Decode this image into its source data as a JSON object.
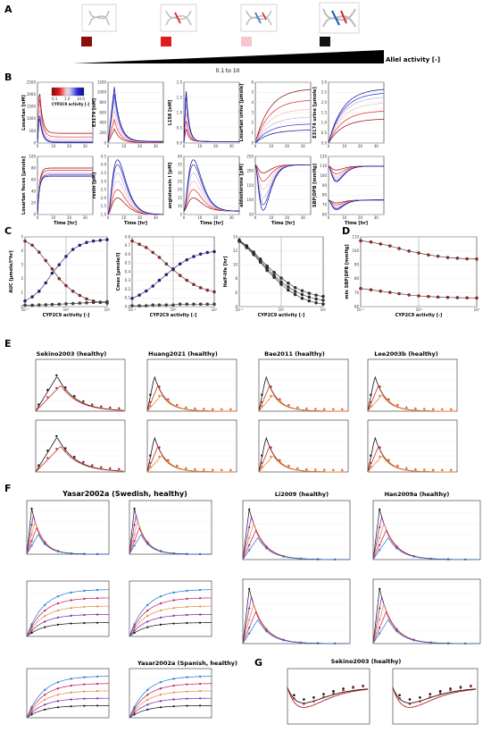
{
  "panel_letters": [
    "A",
    "B",
    "C",
    "D",
    "E",
    "F",
    "G"
  ],
  "panelA": {
    "range_label": "0.1 to 10",
    "allele_label": "Allel activity [-]",
    "swatch_colors": [
      "#8b0d0d",
      "#e01b1b",
      "#f4c7cb",
      "#111111"
    ]
  },
  "panelB": {
    "colorbar_label": "CYP2C9 activity [-]",
    "colorbar_ticks": [
      "0.1",
      "1.0",
      "10.0"
    ],
    "cmap": [
      "#8b0000",
      "#e8222a",
      "#f2b8b8",
      "#b9b9e6",
      "#2a2ad6",
      "#0b0b8f"
    ]
  },
  "panelC_D": {
    "markers": {
      "decreasing": "#b22222",
      "increasing": "#1a1aa8",
      "dark": "#444444"
    }
  },
  "panelE": {
    "titles": [
      "Sekino2003 (healthy)",
      "Huang2021 (healthy)",
      "Bae2011 (healthy)",
      "Lee2003b (healthy)"
    ]
  },
  "panelF": {
    "main_title": "Yasar2002a (Swedish, healthy)",
    "titles": [
      "Li2009 (healthy)",
      "Han2009a (healthy)"
    ],
    "sub_title": "Yasar2002a (Spanish, healthy)"
  },
  "panelG": {
    "title": "Sekino2003 (healthy)",
    "series_colors": [
      "#111111",
      "#b22222"
    ]
  },
  "chart_data": [
    {
      "id": "B1",
      "type": "line",
      "ylabel": "Losartan [nM]",
      "xlabel": "",
      "xlim": [
        0,
        35
      ],
      "ylim": [
        0,
        2500
      ],
      "yticks": [
        "0",
        "500",
        "1000",
        "1500",
        "2000",
        "2500"
      ],
      "xticks": [
        "0",
        "10",
        "20",
        "30"
      ],
      "shape": "peak-early",
      "peak_x": 1.2,
      "peak_y": [
        2300,
        2050,
        1800,
        1550,
        1300,
        1150
      ],
      "tail_y": [
        400,
        250,
        150,
        80,
        40,
        20
      ]
    },
    {
      "id": "B2",
      "type": "line",
      "ylabel": "E3174 [nM]",
      "xlabel": "",
      "xlim": [
        0,
        35
      ],
      "ylim": [
        0,
        1300
      ],
      "yticks": [
        "0",
        "200",
        "400",
        "600",
        "800",
        "1000",
        "1200"
      ],
      "xticks": [
        "0",
        "10",
        "20",
        "30"
      ],
      "shape": "peak-mid",
      "peak_x": 4,
      "peak_y": [
        300,
        500,
        700,
        900,
        1050,
        1200
      ],
      "tail_y": [
        10,
        15,
        20,
        25,
        30,
        35
      ]
    },
    {
      "id": "B3",
      "type": "line",
      "ylabel": "L158 [nM]",
      "xlabel": "",
      "xlim": [
        0,
        35
      ],
      "ylim": [
        0,
        2.0
      ],
      "yticks": [
        "0.0",
        "0.5",
        "1.0",
        "1.5",
        "2.0"
      ],
      "xticks": [
        "0",
        "10",
        "20",
        "30"
      ],
      "shape": "peak-early",
      "peak_x": 1.3,
      "peak_y": [
        0.5,
        0.8,
        1.1,
        1.4,
        1.7,
        1.9
      ],
      "tail_y": [
        0.05,
        0.05,
        0.05,
        0.05,
        0.05,
        0.05
      ]
    },
    {
      "id": "B4",
      "type": "line",
      "ylabel": "Losartan urine [µmole]",
      "xlabel": "",
      "xlim": [
        0,
        35
      ],
      "ylim": [
        0,
        6
      ],
      "yticks": [
        "0",
        "1",
        "2",
        "3",
        "4",
        "5",
        "6"
      ],
      "xticks": [
        "0",
        "10",
        "20",
        "30"
      ],
      "shape": "saturate",
      "final_y": [
        5.4,
        4.3,
        3.4,
        2.6,
        1.9,
        1.3
      ]
    },
    {
      "id": "B5",
      "type": "line",
      "ylabel": "E3174 urine [µmole]",
      "xlabel": "",
      "xlim": [
        0,
        35
      ],
      "ylim": [
        0,
        3.0
      ],
      "yticks": [
        "0.0",
        "0.5",
        "1.0",
        "1.5",
        "2.0",
        "2.5",
        "3.0"
      ],
      "xticks": [
        "0",
        "10",
        "20",
        "30"
      ],
      "shape": "saturate",
      "final_y": [
        1.2,
        1.6,
        2.0,
        2.3,
        2.5,
        2.7
      ]
    },
    {
      "id": "B6",
      "type": "line",
      "ylabel": "Losartan feces [µmole]",
      "xlabel": "Time [hr]",
      "xlim": [
        0,
        35
      ],
      "ylim": [
        0,
        100
      ],
      "yticks": [
        "0",
        "20",
        "40",
        "60",
        "80",
        "100"
      ],
      "xticks": [
        "0",
        "10",
        "20",
        "30"
      ],
      "shape": "saturate-fast",
      "final_y": [
        80,
        76,
        72,
        70,
        68,
        66
      ]
    },
    {
      "id": "B7",
      "type": "line",
      "ylabel": "renin [pM]",
      "xlabel": "Time [hr]",
      "xlim": [
        0,
        35
      ],
      "ylim": [
        1.0,
        4.5
      ],
      "yticks": [
        "1.0",
        "1.5",
        "2.0",
        "2.5",
        "3.0",
        "3.5",
        "4.0",
        "4.5"
      ],
      "xticks": [
        "0",
        "10",
        "20",
        "30"
      ],
      "shape": "hump",
      "base": 1.0,
      "peak_x": 6,
      "peak_y": [
        2.0,
        2.5,
        3.0,
        3.5,
        4.0,
        4.3
      ]
    },
    {
      "id": "B8",
      "type": "line",
      "ylabel": "angiotensin I [pM]",
      "xlabel": "Time [hr]",
      "xlim": [
        0,
        35
      ],
      "ylim": [
        5,
        40
      ],
      "yticks": [
        "5",
        "10",
        "15",
        "20",
        "25",
        "30",
        "35",
        "40"
      ],
      "xticks": [
        "0",
        "10",
        "20",
        "30"
      ],
      "shape": "hump",
      "base": 7,
      "peak_x": 6,
      "peak_y": [
        15,
        20,
        25,
        30,
        35,
        38
      ]
    },
    {
      "id": "B9",
      "type": "line",
      "ylabel": "aldosterone [pM]",
      "xlabel": "Time [hr]",
      "xlim": [
        0,
        35
      ],
      "ylim": [
        50,
        260
      ],
      "yticks": [
        "50",
        "100",
        "150",
        "200",
        "250"
      ],
      "xticks": [
        "0",
        "10",
        "20",
        "30"
      ],
      "shape": "dip",
      "base": 230,
      "dip_x": 5,
      "dip_y": [
        200,
        170,
        140,
        110,
        85,
        65
      ]
    },
    {
      "id": "B10",
      "type": "line",
      "ylabel": "SBP|DPB [mmHg]",
      "xlabel": "Time [hr]",
      "xlim": [
        0,
        35
      ],
      "ylim": [
        60,
        120
      ],
      "yticks": [
        "60",
        "70",
        "80",
        "90",
        "100",
        "110",
        "120"
      ],
      "xticks": [
        "0",
        "10",
        "20",
        "30"
      ],
      "shape": "dip-double",
      "base_hi": 110,
      "base_lo": 75,
      "dip_x": 5,
      "dip_hi": [
        106,
        102,
        99,
        97,
        95,
        94
      ],
      "dip_lo": [
        72,
        70,
        68,
        67,
        66,
        65
      ]
    },
    {
      "id": "C1",
      "type": "scatter",
      "ylabel": "AUC [µmole/l*hr]",
      "xlabel": "CYP2C9 activity [-]",
      "xscale": "log",
      "xlim": [
        0.1,
        10
      ],
      "ylim": [
        0,
        5
      ],
      "vline": 1,
      "yticks": [
        "0",
        "1",
        "2",
        "3",
        "4",
        "5"
      ],
      "xticks": [
        "10⁻¹",
        "10⁰",
        "10¹"
      ],
      "x": [
        0.1,
        0.15,
        0.22,
        0.32,
        0.46,
        0.68,
        1.0,
        1.47,
        2.15,
        3.16,
        4.64,
        6.8,
        10
      ],
      "series": [
        {
          "values": [
            4.7,
            4.4,
            3.9,
            3.3,
            2.7,
            2.0,
            1.5,
            1.1,
            0.8,
            0.55,
            0.4,
            0.3,
            0.25
          ],
          "color": "#b22222"
        },
        {
          "values": [
            0.4,
            0.7,
            1.1,
            1.7,
            2.4,
            3.0,
            3.6,
            4.1,
            4.4,
            4.6,
            4.7,
            4.75,
            4.8
          ],
          "color": "#1a1aa8"
        },
        {
          "values": [
            0.1,
            0.1,
            0.12,
            0.13,
            0.15,
            0.17,
            0.2,
            0.22,
            0.25,
            0.27,
            0.3,
            0.32,
            0.35
          ],
          "color": "#444444"
        }
      ]
    },
    {
      "id": "C2",
      "type": "scatter",
      "ylabel": "Cmax [µmole/l]",
      "xlabel": "CYP2C9 activity [-]",
      "xscale": "log",
      "xlim": [
        0.1,
        10
      ],
      "ylim": [
        0,
        0.85
      ],
      "vline": 1,
      "yticks": [
        "0.0",
        "0.1",
        "0.2",
        "0.3",
        "0.4",
        "0.5",
        "0.6",
        "0.7",
        "0.8"
      ],
      "xticks": [
        "10⁻¹",
        "10⁰",
        "10¹"
      ],
      "x": [
        0.1,
        0.15,
        0.22,
        0.32,
        0.46,
        0.68,
        1.0,
        1.47,
        2.15,
        3.16,
        4.64,
        6.8,
        10
      ],
      "series": [
        {
          "values": [
            0.8,
            0.76,
            0.72,
            0.66,
            0.6,
            0.52,
            0.45,
            0.38,
            0.32,
            0.27,
            0.23,
            0.2,
            0.18
          ],
          "color": "#b22222"
        },
        {
          "values": [
            0.1,
            0.14,
            0.19,
            0.25,
            0.32,
            0.39,
            0.46,
            0.52,
            0.57,
            0.61,
            0.64,
            0.66,
            0.67
          ],
          "color": "#1a1aa8"
        },
        {
          "values": [
            0.01,
            0.01,
            0.01,
            0.02,
            0.02,
            0.02,
            0.02,
            0.03,
            0.03,
            0.03,
            0.03,
            0.03,
            0.03
          ],
          "color": "#444444"
        }
      ]
    },
    {
      "id": "C3",
      "type": "scatter",
      "ylabel": "Half-life [hr]",
      "xlabel": "CYP2C9 activity [-]",
      "xscale": "log",
      "xlim": [
        0.1,
        10
      ],
      "ylim": [
        4,
        15
      ],
      "vline": 1,
      "yticks": [
        "4",
        "6",
        "8",
        "10",
        "12",
        "14"
      ],
      "xticks": [
        "10⁻¹",
        "10⁰",
        "10¹"
      ],
      "x": [
        0.1,
        0.15,
        0.22,
        0.32,
        0.46,
        0.68,
        1.0,
        1.47,
        2.15,
        3.16,
        4.64,
        6.8,
        10
      ],
      "series": [
        {
          "values": [
            14.5,
            13.6,
            12.6,
            11.5,
            10.4,
            9.4,
            8.5,
            7.7,
            7.0,
            6.5,
            6.1,
            5.8,
            5.6
          ],
          "color": "#333333"
        },
        {
          "values": [
            14.4,
            13.5,
            12.4,
            11.2,
            10.0,
            8.9,
            7.9,
            7.1,
            6.4,
            5.9,
            5.5,
            5.2,
            5.0
          ],
          "color": "#333333"
        },
        {
          "values": [
            14.3,
            13.3,
            12.2,
            11.0,
            9.7,
            8.6,
            7.5,
            6.6,
            5.9,
            5.3,
            4.9,
            4.6,
            4.4
          ],
          "color": "#333333"
        }
      ]
    },
    {
      "id": "D1",
      "type": "scatter",
      "ylabel": "min SBP|DPB [mmHg]",
      "xlabel": "CYP2C9 activity [-]",
      "xscale": "log",
      "xlim": [
        0.1,
        10
      ],
      "ylim": [
        58,
        112
      ],
      "vline": 1,
      "yticks": [
        "60",
        "70",
        "80",
        "90",
        "100",
        "110"
      ],
      "xticks": [
        "10⁻¹",
        "10⁰",
        "10¹"
      ],
      "x": [
        0.1,
        0.15,
        0.22,
        0.32,
        0.46,
        0.68,
        1.0,
        1.47,
        2.15,
        3.16,
        4.64,
        6.8,
        10
      ],
      "series": [
        {
          "values": [
            109,
            108,
            106.5,
            105,
            103,
            101,
            99.5,
            98,
            97,
            96,
            95.5,
            95,
            94.8
          ],
          "color": "#b22222"
        },
        {
          "values": [
            72,
            71,
            70,
            69,
            68,
            67,
            66.3,
            65.8,
            65.4,
            65.1,
            64.9,
            64.8,
            64.7
          ],
          "color": "#b22222"
        }
      ]
    }
  ]
}
